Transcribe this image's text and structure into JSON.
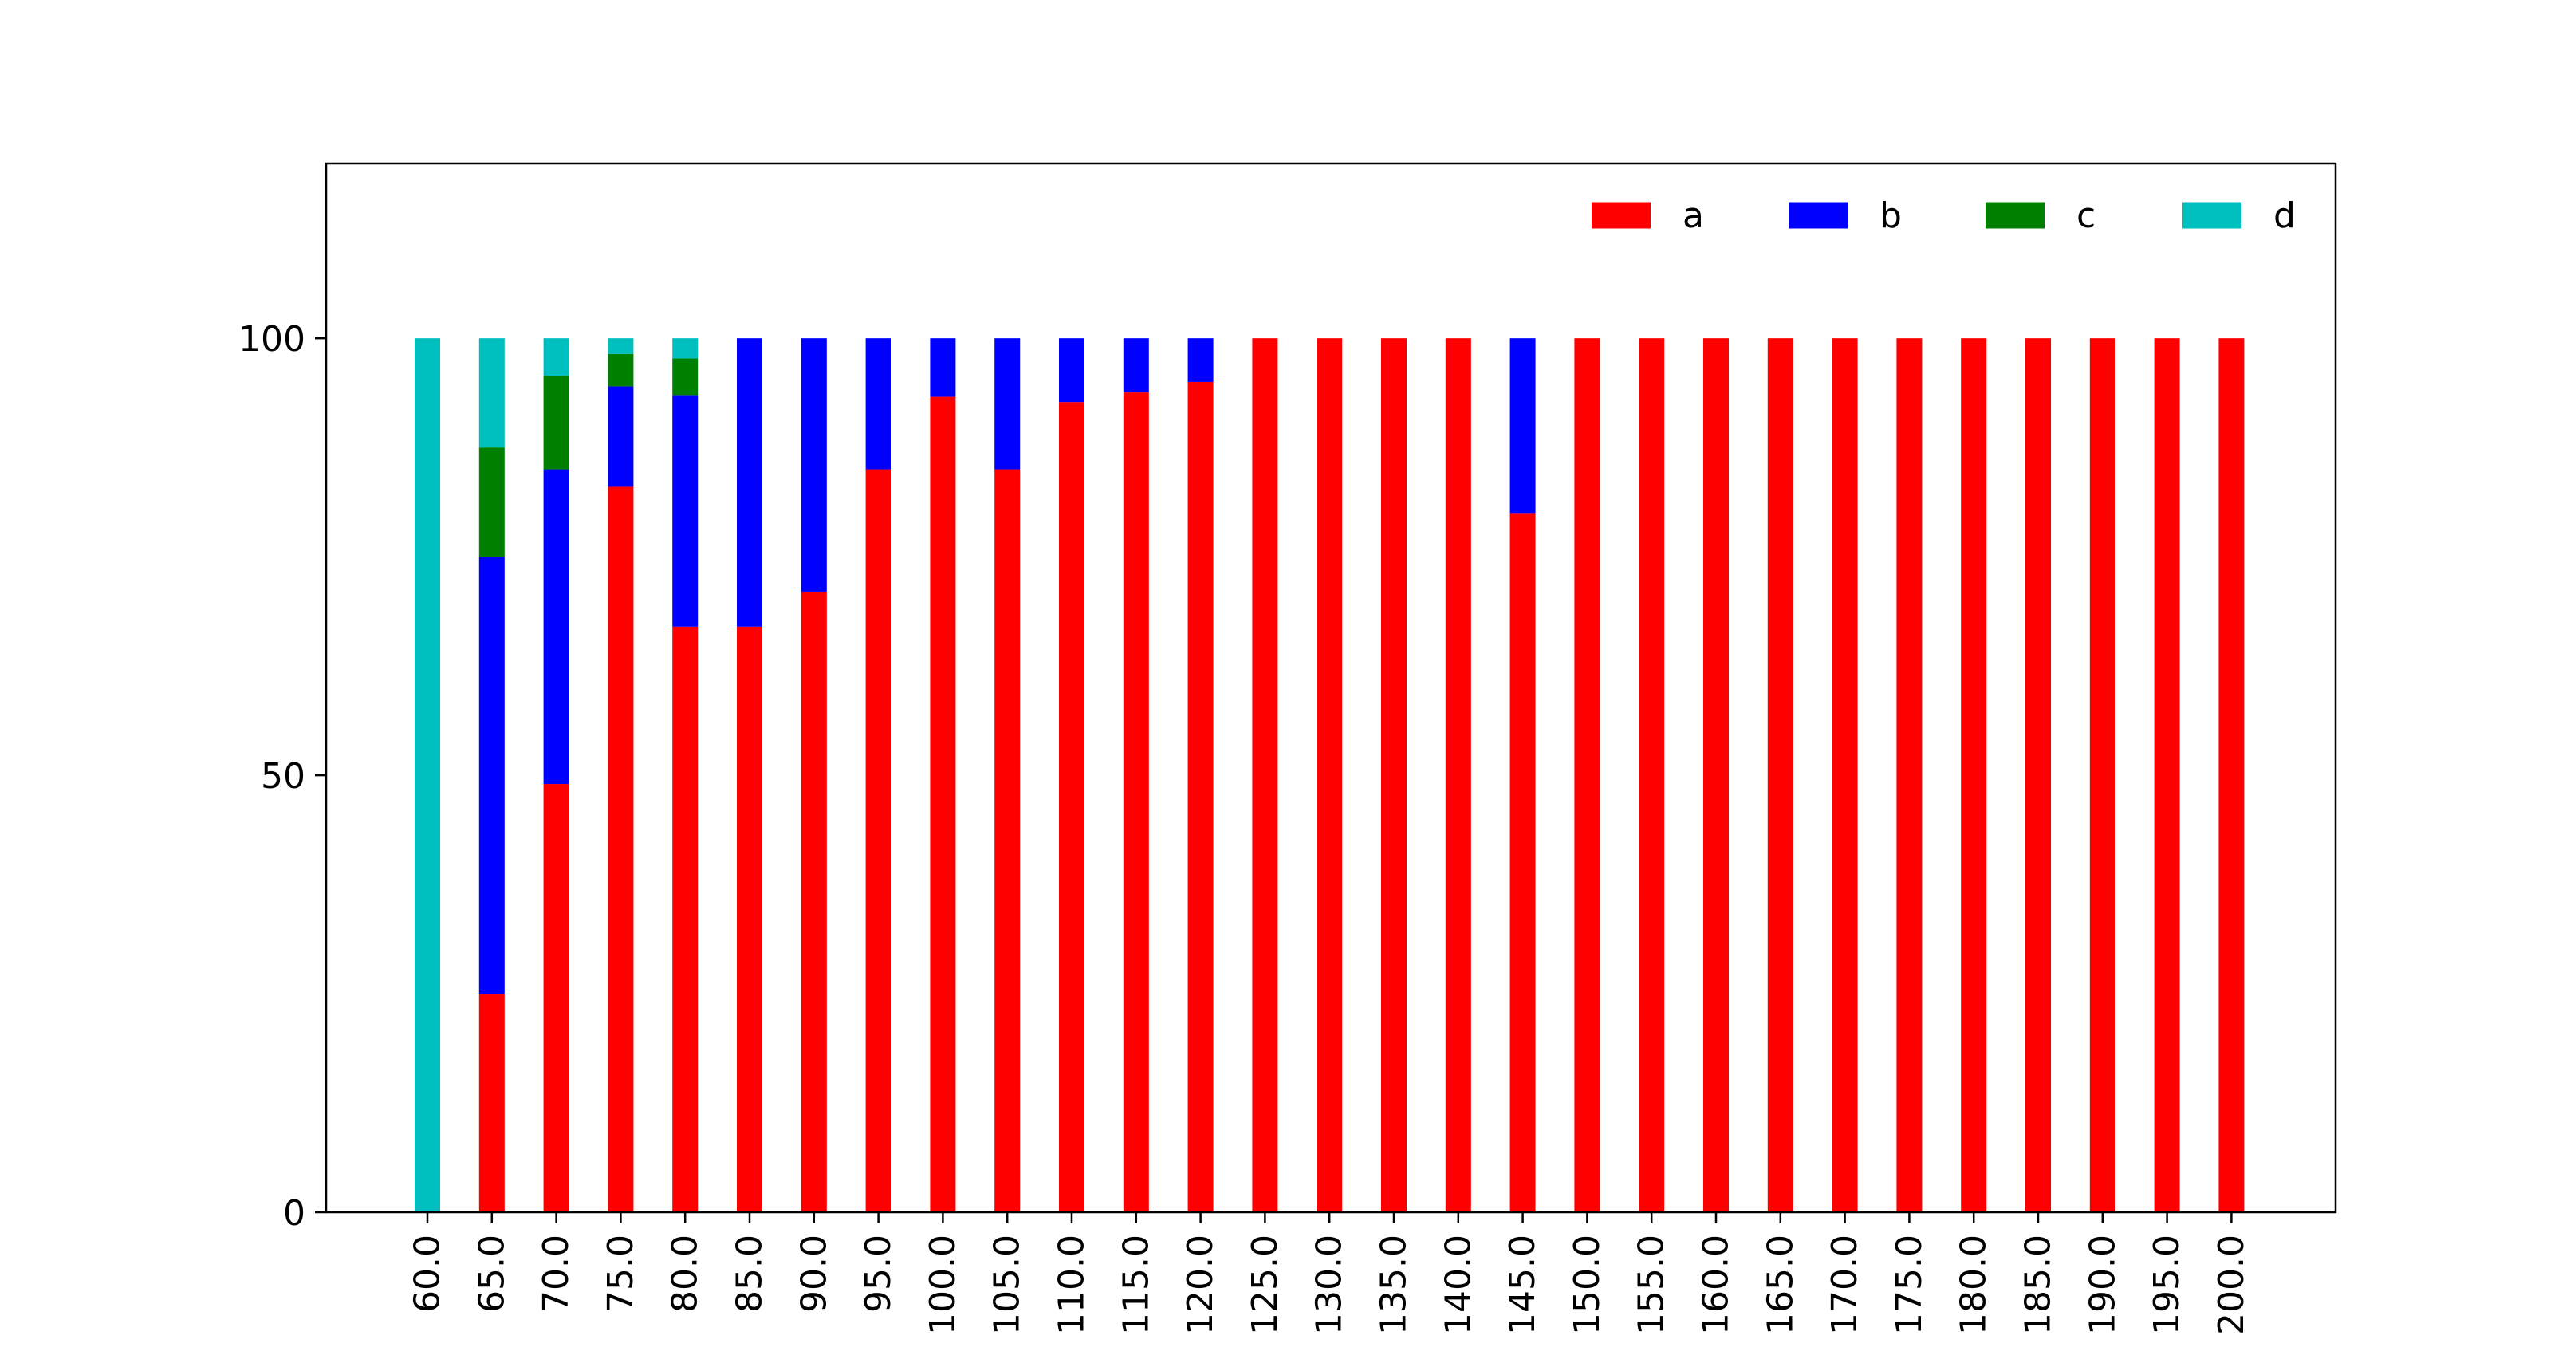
{
  "chart_data": {
    "type": "bar",
    "stacked": true,
    "title": "",
    "xlabel": "",
    "ylabel": "",
    "ylim": [
      0,
      120
    ],
    "yticks": [
      0,
      50,
      100
    ],
    "grid": false,
    "legend_position": "top-right",
    "categories": [
      "60.0",
      "65.0",
      "70.0",
      "75.0",
      "80.0",
      "85.0",
      "90.0",
      "95.0",
      "100.0",
      "105.0",
      "110.0",
      "115.0",
      "120.0",
      "125.0",
      "130.0",
      "135.0",
      "140.0",
      "145.0",
      "150.0",
      "155.0",
      "160.0",
      "165.0",
      "170.0",
      "175.0",
      "180.0",
      "185.0",
      "190.0",
      "195.0",
      "200.0"
    ],
    "series": [
      {
        "name": "a",
        "color": "#ff0000",
        "values": [
          0,
          25,
          49,
          83,
          67,
          67,
          71,
          85,
          93.3,
          85,
          92.7,
          93.8,
          95,
          100,
          100,
          100,
          100,
          80,
          100,
          100,
          100,
          100,
          100,
          100,
          100,
          100,
          100,
          100,
          100
        ]
      },
      {
        "name": "b",
        "color": "#0000ff",
        "values": [
          0,
          50,
          36,
          11.5,
          26.5,
          33,
          29,
          15,
          6.7,
          15,
          7.3,
          6.2,
          5,
          0,
          0,
          0,
          0,
          20,
          0,
          0,
          0,
          0,
          0,
          0,
          0,
          0,
          0,
          0,
          0
        ]
      },
      {
        "name": "c",
        "color": "#008000",
        "values": [
          0,
          12.5,
          10.7,
          3.7,
          4.2,
          0,
          0,
          0,
          0,
          0,
          0,
          0,
          0,
          0,
          0,
          0,
          0,
          0,
          0,
          0,
          0,
          0,
          0,
          0,
          0,
          0,
          0,
          0,
          0
        ]
      },
      {
        "name": "d",
        "color": "#00bfbf",
        "values": [
          100,
          12.5,
          4.3,
          1.8,
          2.3,
          0,
          0,
          0,
          0,
          0,
          0,
          0,
          0,
          0,
          0,
          0,
          0,
          0,
          0,
          0,
          0,
          0,
          0,
          0,
          0,
          0,
          0,
          0,
          0
        ]
      }
    ]
  }
}
